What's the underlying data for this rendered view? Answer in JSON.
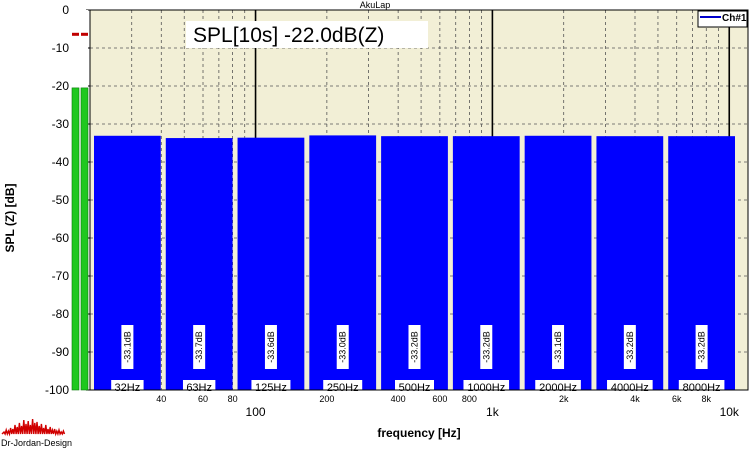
{
  "app": {
    "title": "AkuLap",
    "logo_text": "Dr-Jordan-Design"
  },
  "readout": {
    "text": "SPL[10s] -22.0dB(Z)"
  },
  "legend": {
    "label": "Ch#1"
  },
  "colors": {
    "plot_bg": "#f2efd6",
    "bar": "#0000ff",
    "meter": "#1fc81f",
    "peak_marker": "#c00000",
    "logo": "#d00000"
  },
  "meter": {
    "level_db": -20.5,
    "peak_db": -6
  },
  "chart_data": {
    "type": "bar",
    "title": "",
    "xlabel": "frequency [Hz]",
    "ylabel": "SPL (Z) [dB]",
    "ylim": [
      -100,
      0
    ],
    "yticks": [
      "0",
      "-10",
      "-20",
      "-30",
      "-40",
      "-50",
      "-60",
      "-70",
      "-80",
      "-90",
      "-100"
    ],
    "x_scale": "log",
    "xlim": [
      20,
      12000
    ],
    "x_major_ticks": [
      {
        "value": 100,
        "label": "100"
      },
      {
        "value": 1000,
        "label": "1k"
      },
      {
        "value": 10000,
        "label": "10k"
      }
    ],
    "x_minor_labels": [
      {
        "value": 40,
        "label": "40"
      },
      {
        "value": 60,
        "label": "60"
      },
      {
        "value": 80,
        "label": "80"
      },
      {
        "value": 200,
        "label": "200"
      },
      {
        "value": 400,
        "label": "400"
      },
      {
        "value": 600,
        "label": "600"
      },
      {
        "value": 800,
        "label": "800"
      },
      {
        "value": 2000,
        "label": "2k"
      },
      {
        "value": 4000,
        "label": "4k"
      },
      {
        "value": 6000,
        "label": "6k"
      },
      {
        "value": 8000,
        "label": "8k"
      }
    ],
    "grid": true,
    "legend_position": "top-right",
    "categories": [
      "32Hz",
      "63Hz",
      "125Hz",
      "250Hz",
      "500Hz",
      "1000Hz",
      "2000Hz",
      "4000Hz",
      "8000Hz"
    ],
    "series": [
      {
        "name": "Ch#1",
        "values": [
          -33.1,
          -33.7,
          -33.6,
          -33.0,
          -33.2,
          -33.2,
          -33.1,
          -33.2,
          -33.2
        ],
        "labels": [
          "-33.1dB",
          "-33.7dB",
          "-33.6dB",
          "-33.0dB",
          "-33.2dB",
          "-33.2dB",
          "-33.1dB",
          "-33.2dB",
          "-33.2dB"
        ]
      }
    ]
  }
}
